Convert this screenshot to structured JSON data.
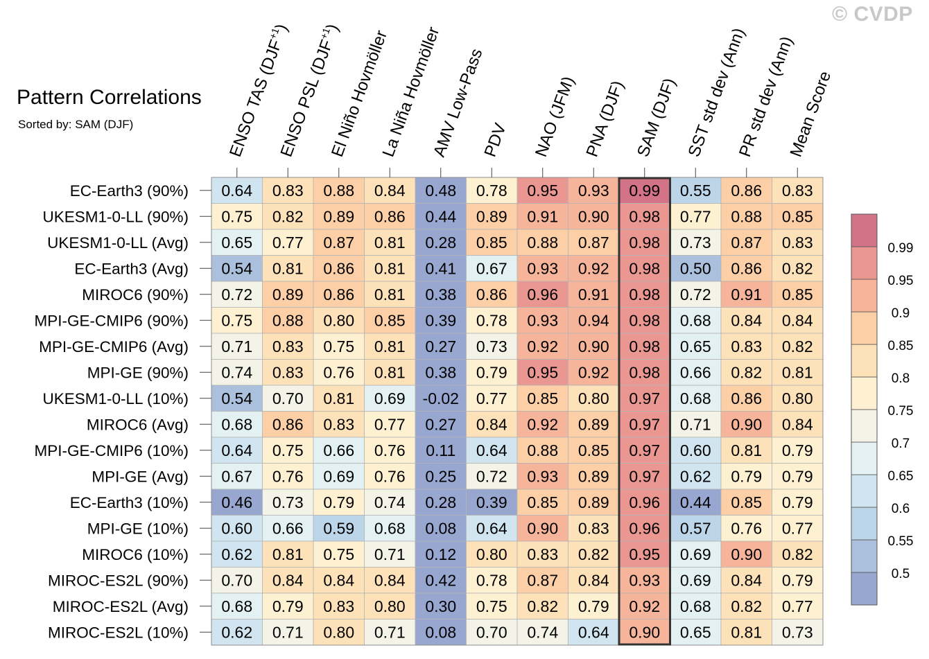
{
  "header": {
    "title": "Pattern Correlations",
    "subtitle": "Sorted by: SAM (DJF)",
    "watermark": "© CVDP"
  },
  "chart_data": {
    "type": "heatmap",
    "title": "Pattern Correlations",
    "subtitle": "Sorted by: SAM (DJF)",
    "highlight_column": "SAM (DJF)",
    "columns": [
      {
        "label": "ENSO TAS (DJF",
        "sup": "+1",
        "tail": ")"
      },
      {
        "label": "ENSO PSL (DJF",
        "sup": "+1",
        "tail": ")"
      },
      {
        "label": "El Niño Hovmöller"
      },
      {
        "label": "La Niña Hovmöller"
      },
      {
        "label": "AMV Low-Pass"
      },
      {
        "label": "PDV"
      },
      {
        "label": "NAO (JFM)"
      },
      {
        "label": "PNA (DJF)"
      },
      {
        "label": "SAM (DJF)"
      },
      {
        "label": "SST std dev (Ann)"
      },
      {
        "label": "PR std dev (Ann)"
      },
      {
        "label": "Mean Score"
      }
    ],
    "rows": [
      "EC-Earth3 (90%)",
      "UKESM1-0-LL (90%)",
      "UKESM1-0-LL (Avg)",
      "EC-Earth3 (Avg)",
      "MIROC6 (90%)",
      "MPI-GE-CMIP6 (90%)",
      "MPI-GE-CMIP6 (Avg)",
      "MPI-GE (90%)",
      "UKESM1-0-LL (10%)",
      "MIROC6 (Avg)",
      "MPI-GE-CMIP6 (10%)",
      "MPI-GE (Avg)",
      "EC-Earth3 (10%)",
      "MPI-GE (10%)",
      "MIROC6 (10%)",
      "MIROC-ES2L (90%)",
      "MIROC-ES2L (Avg)",
      "MIROC-ES2L (10%)"
    ],
    "values": [
      [
        "0.64",
        "0.83",
        "0.88",
        "0.84",
        "0.48",
        "0.78",
        "0.95",
        "0.93",
        "0.99",
        "0.55",
        "0.86",
        "0.83"
      ],
      [
        "0.75",
        "0.82",
        "0.89",
        "0.86",
        "0.44",
        "0.89",
        "0.91",
        "0.90",
        "0.98",
        "0.77",
        "0.88",
        "0.85"
      ],
      [
        "0.65",
        "0.77",
        "0.87",
        "0.81",
        "0.28",
        "0.85",
        "0.88",
        "0.87",
        "0.98",
        "0.73",
        "0.87",
        "0.83"
      ],
      [
        "0.54",
        "0.81",
        "0.86",
        "0.81",
        "0.41",
        "0.67",
        "0.93",
        "0.92",
        "0.98",
        "0.50",
        "0.86",
        "0.82"
      ],
      [
        "0.72",
        "0.89",
        "0.86",
        "0.81",
        "0.38",
        "0.86",
        "0.96",
        "0.91",
        "0.98",
        "0.72",
        "0.91",
        "0.85"
      ],
      [
        "0.75",
        "0.88",
        "0.80",
        "0.85",
        "0.39",
        "0.78",
        "0.93",
        "0.94",
        "0.98",
        "0.68",
        "0.84",
        "0.84"
      ],
      [
        "0.71",
        "0.83",
        "0.75",
        "0.81",
        "0.27",
        "0.73",
        "0.92",
        "0.90",
        "0.98",
        "0.65",
        "0.83",
        "0.82"
      ],
      [
        "0.74",
        "0.83",
        "0.76",
        "0.81",
        "0.38",
        "0.79",
        "0.95",
        "0.92",
        "0.98",
        "0.66",
        "0.82",
        "0.81"
      ],
      [
        "0.54",
        "0.70",
        "0.81",
        "0.69",
        "-0.02",
        "0.77",
        "0.85",
        "0.80",
        "0.97",
        "0.68",
        "0.86",
        "0.80"
      ],
      [
        "0.68",
        "0.86",
        "0.83",
        "0.77",
        "0.27",
        "0.84",
        "0.92",
        "0.89",
        "0.97",
        "0.71",
        "0.90",
        "0.84"
      ],
      [
        "0.64",
        "0.75",
        "0.66",
        "0.76",
        "0.11",
        "0.64",
        "0.88",
        "0.85",
        "0.97",
        "0.60",
        "0.81",
        "0.79"
      ],
      [
        "0.67",
        "0.76",
        "0.69",
        "0.76",
        "0.25",
        "0.72",
        "0.93",
        "0.89",
        "0.97",
        "0.62",
        "0.79",
        "0.79"
      ],
      [
        "0.46",
        "0.73",
        "0.79",
        "0.74",
        "0.28",
        "0.39",
        "0.85",
        "0.89",
        "0.96",
        "0.44",
        "0.85",
        "0.79"
      ],
      [
        "0.60",
        "0.66",
        "0.59",
        "0.68",
        "0.08",
        "0.64",
        "0.90",
        "0.83",
        "0.96",
        "0.57",
        "0.76",
        "0.77"
      ],
      [
        "0.62",
        "0.81",
        "0.75",
        "0.71",
        "0.12",
        "0.80",
        "0.83",
        "0.82",
        "0.95",
        "0.69",
        "0.90",
        "0.82"
      ],
      [
        "0.70",
        "0.84",
        "0.84",
        "0.84",
        "0.42",
        "0.78",
        "0.87",
        "0.84",
        "0.93",
        "0.69",
        "0.84",
        "0.79"
      ],
      [
        "0.68",
        "0.79",
        "0.83",
        "0.80",
        "0.30",
        "0.75",
        "0.82",
        "0.79",
        "0.92",
        "0.68",
        "0.82",
        "0.77"
      ],
      [
        "0.62",
        "0.71",
        "0.80",
        "0.71",
        "0.08",
        "0.70",
        "0.74",
        "0.64",
        "0.90",
        "0.65",
        "0.81",
        "0.73"
      ]
    ],
    "colorbar": {
      "levels": [
        0.5,
        0.55,
        0.6,
        0.65,
        0.7,
        0.75,
        0.8,
        0.85,
        0.9,
        0.95,
        0.99
      ],
      "tick_labels": [
        "0.5",
        "0.55",
        "0.6",
        "0.65",
        "0.7",
        "0.75",
        "0.8",
        "0.85",
        "0.9",
        "0.95",
        "0.99"
      ],
      "colors": [
        "#97a7d0",
        "#aac0dc",
        "#bcd5e8",
        "#d0e5ef",
        "#e3f1f3",
        "#f3f3e8",
        "#fdf1d2",
        "#fde1b8",
        "#fccfa7",
        "#f6b59a",
        "#eb9791",
        "#d27387"
      ],
      "position": "right"
    }
  }
}
